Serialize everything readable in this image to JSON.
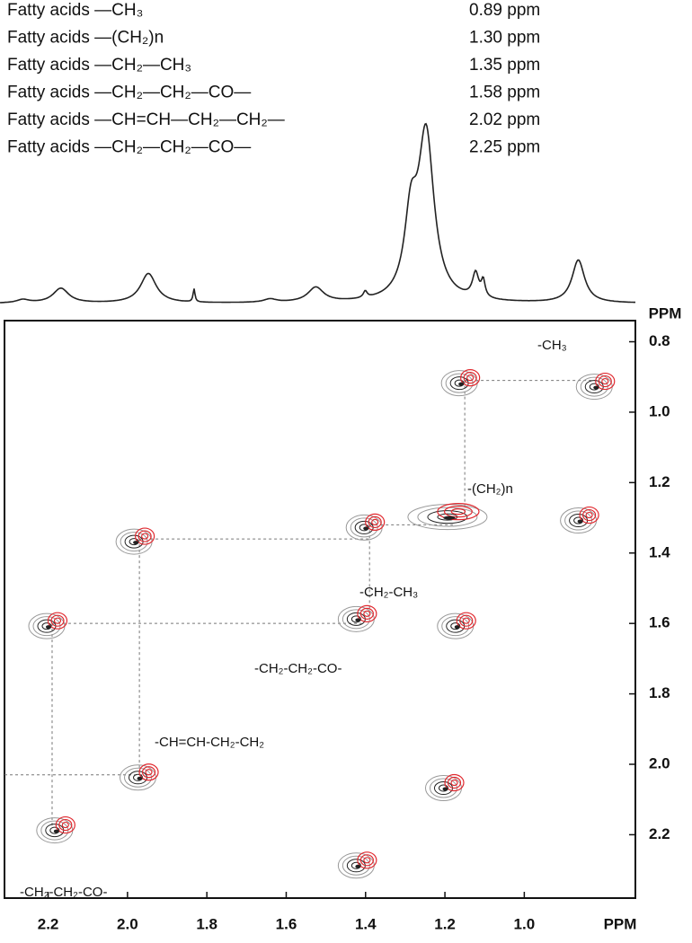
{
  "chart_data": {
    "type": "nmr-2d",
    "assignments": [
      {
        "group": "Fatty acids —CH₃",
        "shift": "0.89 ppm"
      },
      {
        "group": "Fatty acids —(CH₂)n",
        "shift": "1.30 ppm"
      },
      {
        "group": "Fatty acids —CH₂—CH₃",
        "shift": "1.35 ppm"
      },
      {
        "group": "Fatty acids —CH₂—CH₂—CO—",
        "shift": "1.58 ppm"
      },
      {
        "group": "Fatty acids —CH=CH—CH₂—CH₂—",
        "shift": "2.02 ppm"
      },
      {
        "group": "Fatty acids —CH₂—CH₂—CO—",
        "shift": "2.25 ppm"
      }
    ],
    "spectrum": {
      "xlim": [
        2.41,
        0.74
      ],
      "peaks": [
        {
          "x": 2.35,
          "height": 2,
          "width": 0.02
        },
        {
          "x": 2.25,
          "height": 9,
          "width": 0.025
        },
        {
          "x": 2.02,
          "height": 18,
          "width": 0.025
        },
        {
          "x": 1.9,
          "height": 8,
          "width": 0.003
        },
        {
          "x": 1.7,
          "height": 2,
          "width": 0.02
        },
        {
          "x": 1.58,
          "height": 9,
          "width": 0.025
        },
        {
          "x": 1.45,
          "height": 4,
          "width": 0.006
        },
        {
          "x": 1.33,
          "height": 45,
          "width": 0.02
        },
        {
          "x": 1.29,
          "height": 100,
          "width": 0.025
        },
        {
          "x": 1.16,
          "height": 15,
          "width": 0.01
        },
        {
          "x": 1.14,
          "height": 10,
          "width": 0.006
        },
        {
          "x": 0.89,
          "height": 26,
          "width": 0.02
        }
      ]
    },
    "x_label": "PPM",
    "y_label": "PPM",
    "xlim": [
      2.31,
      0.72
    ],
    "ylim": [
      0.74,
      2.38
    ],
    "xticks": [
      2.2,
      {
        "value": 2,
        "label": "2.0"
      },
      1.8,
      1.6,
      1.4,
      1.2,
      {
        "value": 1,
        "label": "1.0"
      }
    ],
    "yticks": [
      0.8,
      {
        "value": 1,
        "label": "1.0"
      },
      1.2,
      1.4,
      1.6,
      1.8,
      {
        "value": 2,
        "label": "2.0"
      },
      2.2
    ],
    "cross_peaks": [
      {
        "x": 0.81,
        "y": 0.92
      },
      {
        "x": 1.15,
        "y": 0.91
      },
      {
        "x": 1.18,
        "y": 1.29
      },
      {
        "x": 0.85,
        "y": 1.3
      },
      {
        "x": 1.39,
        "y": 1.32
      },
      {
        "x": 1.97,
        "y": 1.36
      },
      {
        "x": 1.41,
        "y": 1.58
      },
      {
        "x": 2.19,
        "y": 1.6
      },
      {
        "x": 1.16,
        "y": 1.6
      },
      {
        "x": 1.96,
        "y": 2.03
      },
      {
        "x": 1.19,
        "y": 2.06
      },
      {
        "x": 2.17,
        "y": 2.18
      },
      {
        "x": 1.41,
        "y": 2.28
      }
    ],
    "annotations": [
      "-CH₃",
      "-(CH₂)n",
      "-CH₂-CH₃",
      "-CH₂-CH₂-CO-",
      "-CH=CH-CH₂-CH₂",
      "-CH₂-CH₂-CO-"
    ]
  }
}
